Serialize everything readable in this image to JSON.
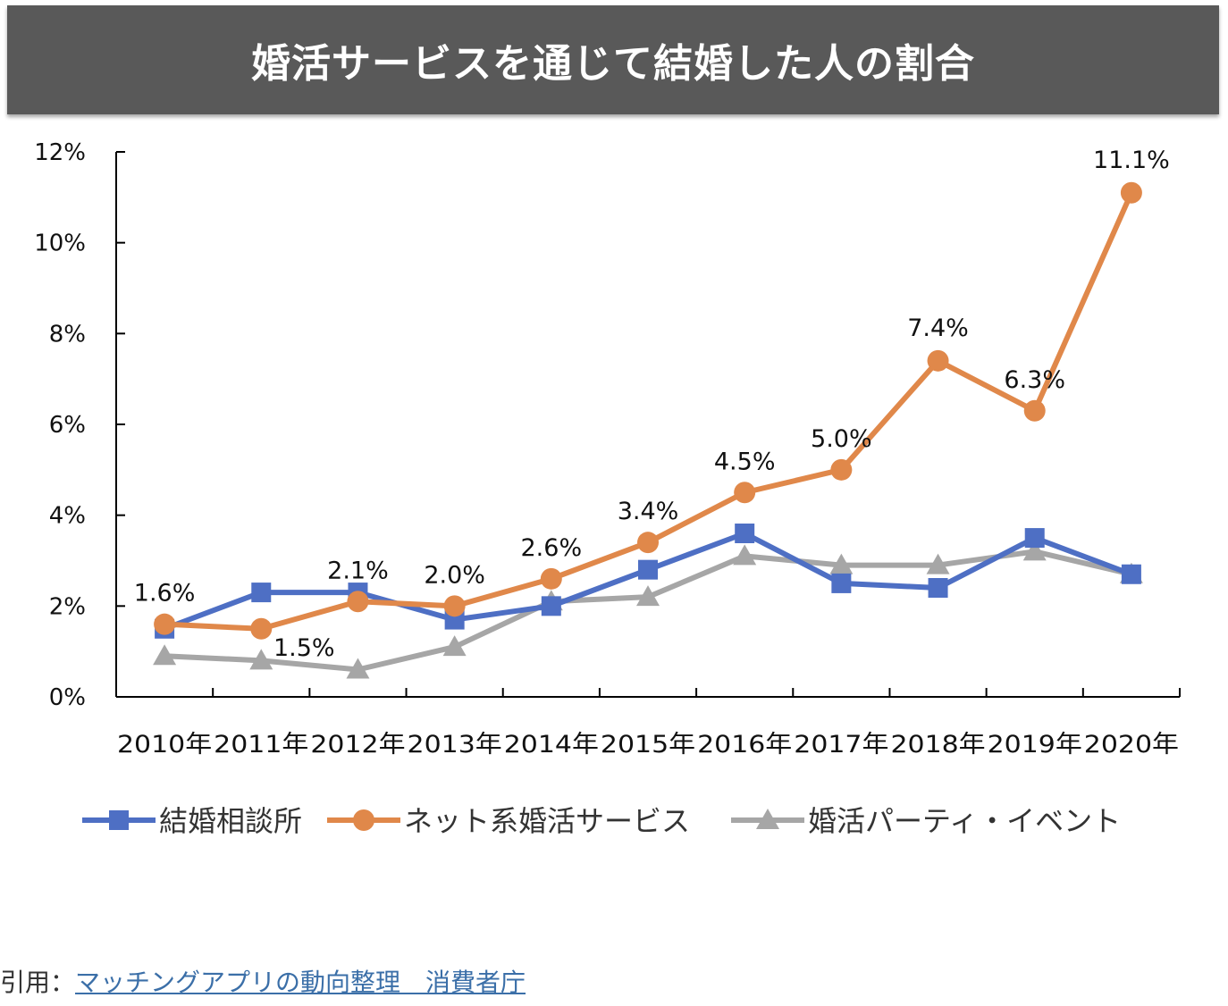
{
  "chart_data": {
    "type": "line",
    "title": "婚活サービスを通じて結婚した人の割合",
    "categories": [
      "2010年",
      "2011年",
      "2012年",
      "2013年",
      "2014年",
      "2015年",
      "2016年",
      "2017年",
      "2018年",
      "2019年",
      "2020年"
    ],
    "ylim": [
      0,
      12
    ],
    "yticks": [
      "0%",
      "2%",
      "4%",
      "6%",
      "8%",
      "10%",
      "12%"
    ],
    "legend_position": "bottom",
    "grid": false,
    "series": [
      {
        "name": "結婚相談所",
        "color": "#4e6fc4",
        "marker": "square",
        "values": [
          1.5,
          2.3,
          2.3,
          1.7,
          2.0,
          2.8,
          3.6,
          2.5,
          2.4,
          3.5,
          2.7
        ]
      },
      {
        "name": "ネット系婚活サービス",
        "color": "#e0884a",
        "marker": "circle",
        "values": [
          1.6,
          1.5,
          2.1,
          2.0,
          2.6,
          3.4,
          4.5,
          5.0,
          7.4,
          6.3,
          11.1
        ],
        "labels": [
          "1.6%",
          "1.5%",
          "2.1%",
          "2.0%",
          "2.6%",
          "3.4%",
          "4.5%",
          "5.0%",
          "7.4%",
          "6.3%",
          "11.1%"
        ]
      },
      {
        "name": "婚活パーティ・イベント",
        "color": "#a6a6a6",
        "marker": "triangle",
        "values": [
          0.9,
          0.8,
          0.6,
          1.1,
          2.1,
          2.2,
          3.1,
          2.9,
          2.9,
          3.2,
          2.7
        ]
      }
    ]
  },
  "citation": {
    "prefix": "引用：",
    "link_text": "マッチングアプリの動向整理　消費者庁"
  }
}
